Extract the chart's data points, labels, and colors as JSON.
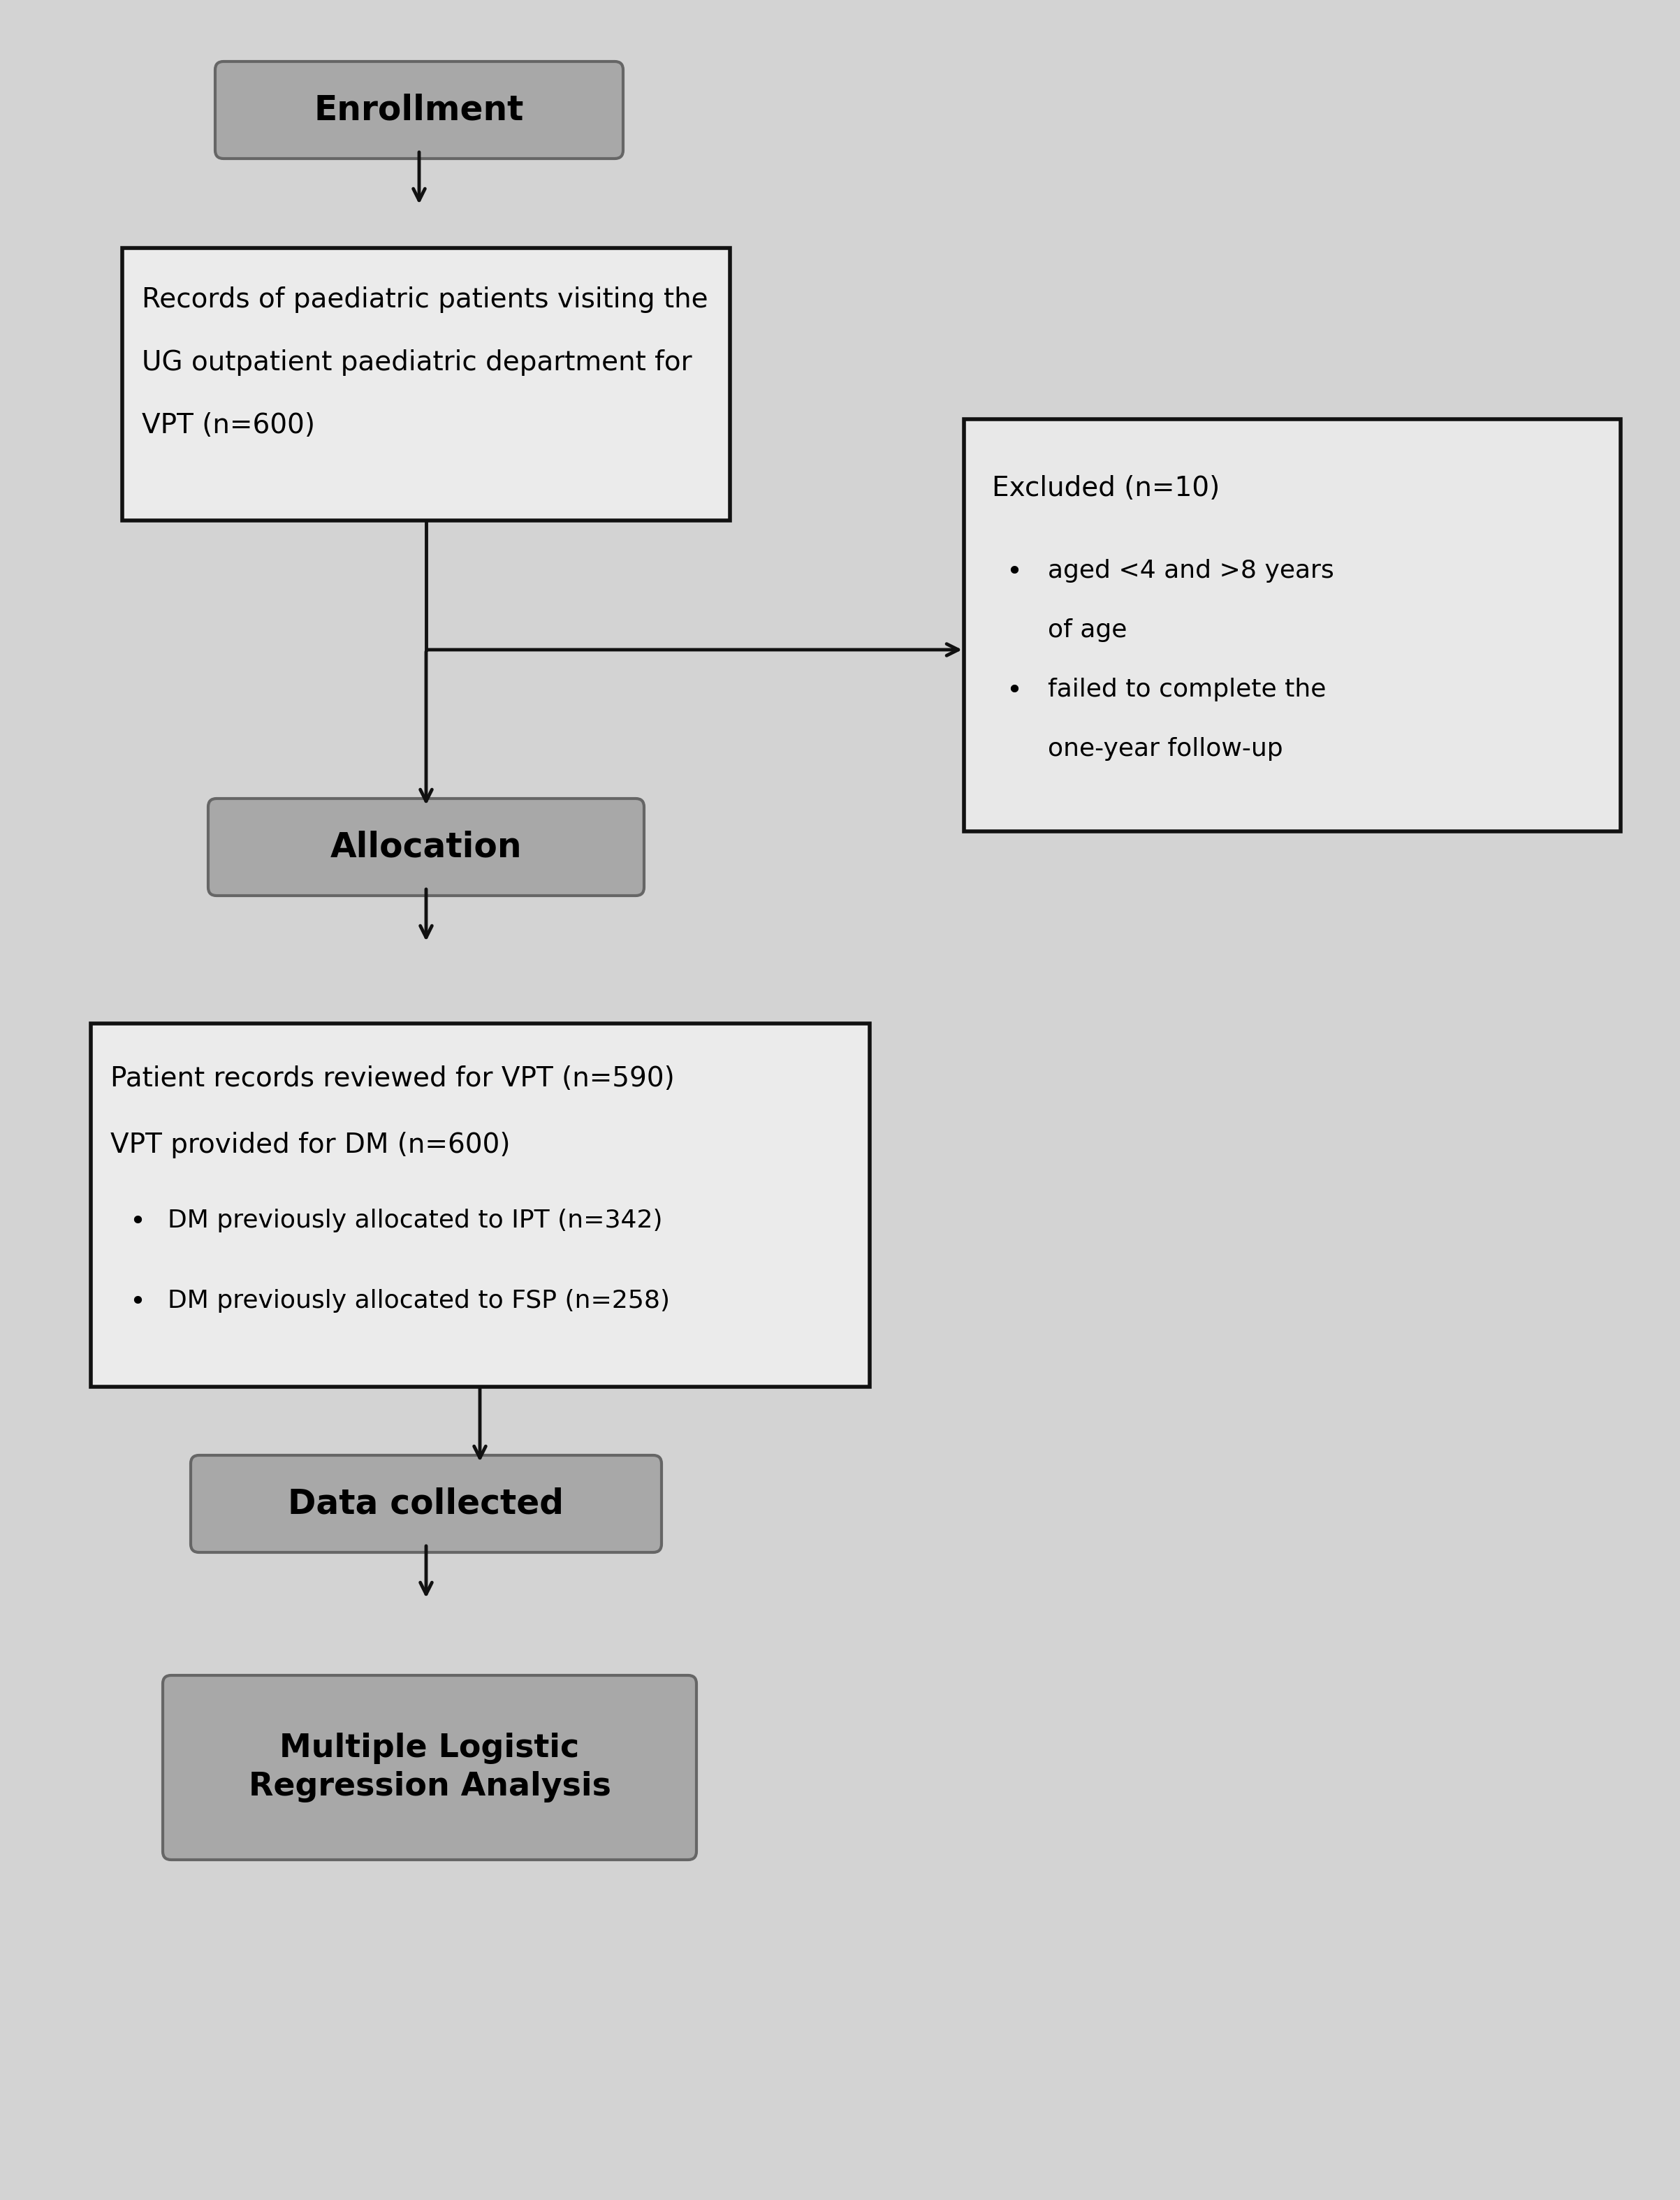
{
  "bg_color": "#d3d3d3",
  "enrollment_text": "Enrollment",
  "records_line1": "Records of paediatric patients visiting the",
  "records_line2": "UG outpatient paediatric department for",
  "records_line3": "VPT (n=600)",
  "excluded_title": "Excluded (n=10)",
  "excl_bullet1a": "aged <4 and >8 years",
  "excl_bullet1b": "of age",
  "excl_bullet2a": "failed to complete the",
  "excl_bullet2b": "one-year follow-up",
  "allocation_text": "Allocation",
  "pr_line1": "Patient records reviewed for VPT (n=590)",
  "pr_line2": "VPT provided for DM (n=600)",
  "pr_bullet1": "DM previously allocated to IPT (n=342)",
  "pr_bullet2": "DM previously allocated to FSP (n=258)",
  "data_collected_text": "Data collected",
  "regression_text": "Multiple Logistic\nRegression Analysis",
  "rounded_facecolor": "#a8a8a8",
  "rounded_edgecolor": "#666666",
  "white_box_facecolor": "#ebebeb",
  "white_box_edgecolor": "#111111",
  "excl_box_facecolor": "#e8e8e8",
  "excl_box_edgecolor": "#111111",
  "arrow_color": "#111111",
  "text_color": "#000000"
}
